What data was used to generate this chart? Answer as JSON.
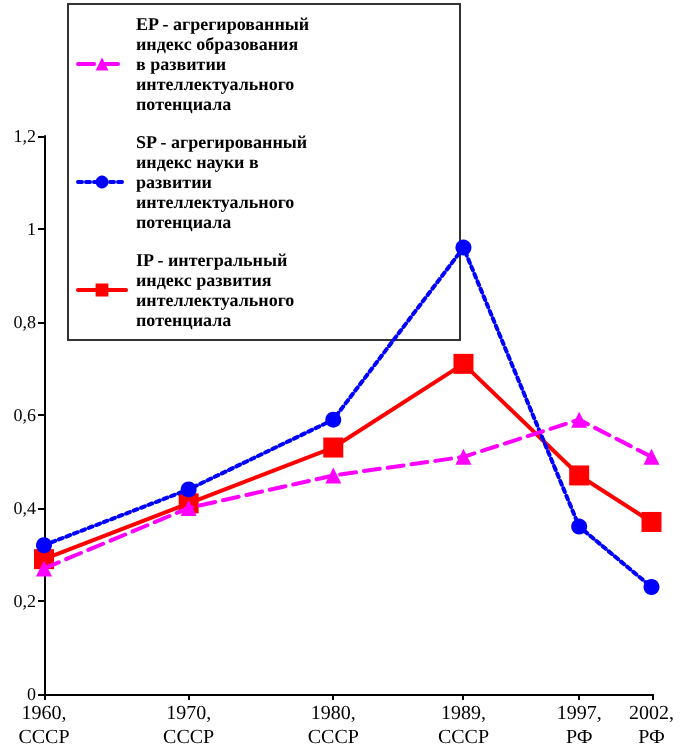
{
  "chart_data": {
    "type": "line",
    "x": [
      1960,
      1970,
      1980,
      1989,
      1997,
      2002
    ],
    "xlim": [
      1960,
      2002
    ],
    "xticks": [
      {
        "value": 1960,
        "label": "1960,\nСССР"
      },
      {
        "value": 1970,
        "label": "1970,\nСССР"
      },
      {
        "value": 1980,
        "label": "1980,\nСССР"
      },
      {
        "value": 1989,
        "label": "1989,\nСССР"
      },
      {
        "value": 1997,
        "label": "1997,\nРФ"
      },
      {
        "value": 2002,
        "label": "2002,\nРФ"
      }
    ],
    "ylim": [
      0,
      1.2
    ],
    "yticks": [
      {
        "value": 0,
        "label": "0"
      },
      {
        "value": 0.2,
        "label": "0,2"
      },
      {
        "value": 0.4,
        "label": "0,4"
      },
      {
        "value": 0.6,
        "label": "0,6"
      },
      {
        "value": 0.8,
        "label": "0,8"
      },
      {
        "value": 1,
        "label": "1"
      },
      {
        "value": 1.2,
        "label": "1,2"
      }
    ],
    "grid": false,
    "legend": "top left",
    "series": [
      {
        "name": "EP - агрегированный индекс образования в развитии интеллектуального потенциала",
        "color": "#ff00ff",
        "marker": "triangle",
        "line_style": "dashed",
        "values": [
          0.27,
          0.4,
          0.47,
          0.51,
          0.59,
          0.51
        ]
      },
      {
        "name": "SP - агрегированный индекс науки в развитии интеллектуального потенциала",
        "color": "#0000ff",
        "marker": "circle",
        "line_style": "dotted",
        "values": [
          0.32,
          0.44,
          0.59,
          0.96,
          0.36,
          0.23
        ]
      },
      {
        "name": "IP - интегральный индекс развития интеллектуального потенциала",
        "color": "#ff0000",
        "marker": "square",
        "line_style": "solid",
        "values": [
          0.29,
          0.41,
          0.53,
          0.71,
          0.47,
          0.37
        ]
      }
    ]
  }
}
